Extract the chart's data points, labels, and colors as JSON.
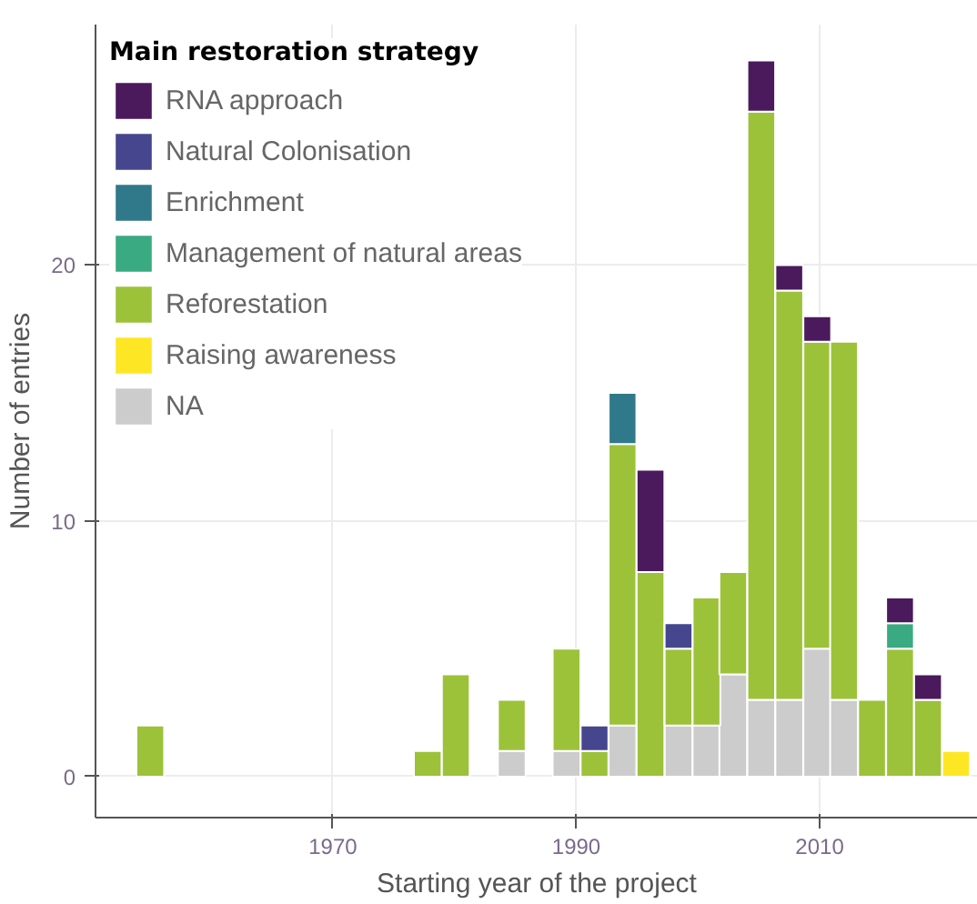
{
  "chart_data": {
    "type": "bar",
    "xlabel": "Starting year of the project",
    "ylabel": "Number of entries",
    "legend_title": "Main restoration strategy",
    "stacked": true,
    "legend": "top left",
    "grid": true,
    "x": [
      1955.0,
      1977.8,
      1980.1,
      1984.7,
      1989.2,
      1991.5,
      1993.8,
      1996.1,
      1998.4,
      2000.7,
      2002.9,
      2005.2,
      2007.5,
      2009.8,
      2012.0,
      2014.3,
      2016.6,
      2018.9,
      2021.2
    ],
    "xlim": [
      1950.5,
      2023
    ],
    "ylim": [
      -1.6,
      29.4
    ],
    "xticks": [
      1970,
      1990,
      2010
    ],
    "yticks": [
      0,
      10,
      20
    ],
    "series": [
      {
        "name": "NA",
        "color": "#cccccc",
        "values": [
          0,
          0,
          0,
          1,
          1,
          0,
          2,
          0,
          2,
          2,
          4,
          3,
          3,
          5,
          3,
          0,
          0,
          0,
          0
        ]
      },
      {
        "name": "Raising awareness",
        "color": "#fde725",
        "values": [
          0,
          0,
          0,
          0,
          0,
          0,
          0,
          0,
          0,
          0,
          0,
          0,
          0,
          0,
          0,
          0,
          0,
          0,
          1
        ]
      },
      {
        "name": "Reforestation",
        "color": "#9cc23a",
        "values": [
          2,
          1,
          4,
          2,
          4,
          1,
          11,
          8,
          3,
          5,
          4,
          23,
          16,
          12,
          14,
          3,
          5,
          3,
          0
        ]
      },
      {
        "name": "Management of natural areas",
        "color": "#3aaa82",
        "values": [
          0,
          0,
          0,
          0,
          0,
          0,
          0,
          0,
          0,
          0,
          0,
          0,
          0,
          0,
          0,
          0,
          1,
          0,
          0
        ]
      },
      {
        "name": "Enrichment",
        "color": "#30798a",
        "values": [
          0,
          0,
          0,
          0,
          0,
          0,
          2,
          0,
          0,
          0,
          0,
          0,
          0,
          0,
          0,
          0,
          0,
          0,
          0
        ]
      },
      {
        "name": "Natural Colonisation",
        "color": "#46468f",
        "values": [
          0,
          0,
          0,
          0,
          0,
          1,
          0,
          0,
          1,
          0,
          0,
          0,
          0,
          0,
          0,
          0,
          0,
          0,
          0
        ]
      },
      {
        "name": "RNA approach",
        "color": "#4a1a5c",
        "values": [
          0,
          0,
          0,
          0,
          0,
          0,
          0,
          4,
          0,
          0,
          0,
          2,
          1,
          1,
          0,
          0,
          1,
          1,
          0
        ]
      }
    ]
  }
}
